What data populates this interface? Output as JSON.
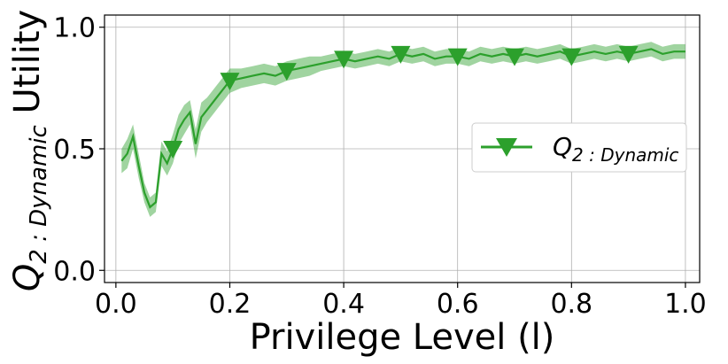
{
  "chart_data": {
    "type": "line",
    "xlabel": "Privilege Level (l)",
    "ylabel_main": "Q",
    "ylabel_sub": "2 : Dynamic",
    "ylabel_suffix": " Utility",
    "xlim": [
      -0.02,
      1.025
    ],
    "ylim": [
      -0.05,
      1.05
    ],
    "xticks": [
      0.0,
      0.2,
      0.4,
      0.6,
      0.8,
      1.0
    ],
    "xtick_labels": [
      "0.0",
      "0.2",
      "0.4",
      "0.6",
      "0.8",
      "1.0"
    ],
    "yticks": [
      0.0,
      0.5,
      1.0
    ],
    "ytick_labels": [
      "0.0",
      "0.5",
      "1.0"
    ],
    "grid": true,
    "legend_position": "center-right",
    "series": [
      {
        "name_main": "Q",
        "name_sub": "2 : Dynamic",
        "color": "#2ca02c",
        "band_color": "#2ca02c",
        "marker": "triangle-down",
        "x": [
          0.01,
          0.02,
          0.03,
          0.04,
          0.05,
          0.06,
          0.07,
          0.08,
          0.085,
          0.09,
          0.1,
          0.11,
          0.12,
          0.13,
          0.14,
          0.15,
          0.16,
          0.18,
          0.2,
          0.22,
          0.24,
          0.26,
          0.28,
          0.3,
          0.32,
          0.34,
          0.36,
          0.38,
          0.4,
          0.42,
          0.44,
          0.46,
          0.48,
          0.5,
          0.52,
          0.54,
          0.56,
          0.58,
          0.6,
          0.62,
          0.64,
          0.66,
          0.68,
          0.7,
          0.72,
          0.74,
          0.76,
          0.78,
          0.8,
          0.82,
          0.84,
          0.86,
          0.88,
          0.9,
          0.92,
          0.94,
          0.96,
          0.98,
          1.0
        ],
        "y": [
          0.45,
          0.48,
          0.55,
          0.43,
          0.32,
          0.26,
          0.28,
          0.48,
          0.46,
          0.44,
          0.5,
          0.58,
          0.62,
          0.65,
          0.52,
          0.63,
          0.66,
          0.72,
          0.78,
          0.79,
          0.8,
          0.81,
          0.8,
          0.82,
          0.83,
          0.84,
          0.85,
          0.86,
          0.87,
          0.86,
          0.87,
          0.88,
          0.87,
          0.89,
          0.88,
          0.89,
          0.87,
          0.88,
          0.88,
          0.87,
          0.89,
          0.88,
          0.89,
          0.88,
          0.89,
          0.88,
          0.89,
          0.9,
          0.88,
          0.89,
          0.9,
          0.89,
          0.9,
          0.89,
          0.9,
          0.91,
          0.89,
          0.9,
          0.9
        ],
        "band_width": [
          0.05,
          0.06,
          0.05,
          0.05,
          0.04,
          0.04,
          0.04,
          0.05,
          0.05,
          0.05,
          0.06,
          0.06,
          0.06,
          0.05,
          0.06,
          0.06,
          0.05,
          0.05,
          0.05,
          0.04,
          0.04,
          0.04,
          0.04,
          0.04,
          0.04,
          0.04,
          0.03,
          0.03,
          0.03,
          0.03,
          0.03,
          0.03,
          0.03,
          0.03,
          0.03,
          0.03,
          0.03,
          0.03,
          0.03,
          0.03,
          0.03,
          0.03,
          0.03,
          0.03,
          0.03,
          0.03,
          0.03,
          0.03,
          0.03,
          0.03,
          0.03,
          0.03,
          0.03,
          0.03,
          0.03,
          0.03,
          0.03,
          0.03,
          0.03
        ],
        "marker_x": [
          0.1,
          0.2,
          0.3,
          0.4,
          0.5,
          0.6,
          0.7,
          0.8,
          0.9
        ],
        "marker_y": [
          0.5,
          0.78,
          0.82,
          0.87,
          0.89,
          0.88,
          0.88,
          0.88,
          0.89
        ]
      }
    ]
  }
}
